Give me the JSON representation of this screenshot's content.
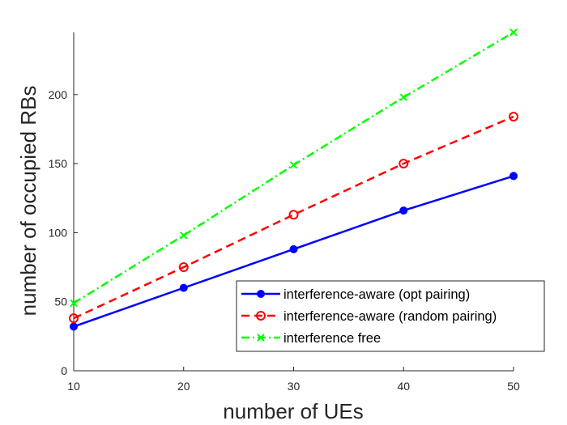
{
  "chart_data": {
    "type": "line",
    "xlabel": "number of UEs",
    "ylabel": "number of occupied RBs",
    "x": [
      10,
      20,
      30,
      40,
      50
    ],
    "xticks": [
      10,
      20,
      30,
      40,
      50
    ],
    "yticks": [
      0,
      50,
      100,
      150,
      200
    ],
    "xlim": [
      10,
      50
    ],
    "ylim": [
      0,
      245
    ],
    "grid": false,
    "legend_position": "bottom-right",
    "series": [
      {
        "name": "interference-aware (opt pairing)",
        "values": [
          32,
          60,
          88,
          116,
          141
        ],
        "color": "#0000ff",
        "line_style": "solid",
        "marker": "filled-circle"
      },
      {
        "name": "interference-aware (random pairing)",
        "values": [
          38,
          75,
          113,
          150,
          184
        ],
        "color": "#ff0000",
        "line_style": "dashed",
        "marker": "open-circle"
      },
      {
        "name": "interference free",
        "values": [
          49,
          98,
          149,
          198,
          245
        ],
        "color": "#00ff00",
        "line_style": "dash-dot",
        "marker": "x"
      }
    ]
  }
}
